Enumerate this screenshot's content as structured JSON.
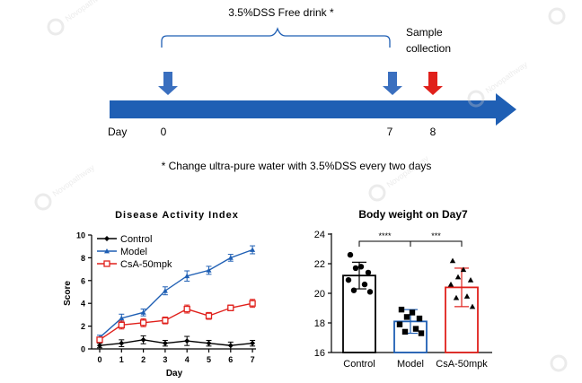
{
  "timeline": {
    "treatment_label": "3.5%DSS   Free drink *",
    "sample_label_line1": "Sample",
    "sample_label_line2": "collection",
    "day_label": "Day",
    "day_marks": [
      "0",
      "7",
      "8"
    ],
    "footnote": "* Change ultra-pure water with 3.5%DSS every two days",
    "colors": {
      "arrow": "#1f5fb4",
      "sample_arrow": "#e0201b",
      "marker_arrow": "#3a6fbf"
    }
  },
  "watermark": {
    "cn": "诺思格新",
    "en": "Novopathway"
  },
  "chart_data": [
    {
      "type": "line",
      "title": "Disease Activity Index",
      "xlabel": "Day",
      "ylabel": "Score",
      "x": [
        0,
        1,
        2,
        3,
        4,
        5,
        6,
        7
      ],
      "xticks": [
        "0",
        "1",
        "2",
        "3",
        "4",
        "5",
        "6",
        "7"
      ],
      "yticks": [
        "0",
        "2",
        "4",
        "6",
        "8",
        "10"
      ],
      "ylim": [
        0,
        10
      ],
      "legend_position": "top-left",
      "series": [
        {
          "name": "Control",
          "color": "#000000",
          "marker": "diamond",
          "values": [
            0.3,
            0.5,
            0.8,
            0.5,
            0.7,
            0.5,
            0.3,
            0.5
          ],
          "errors": [
            0.2,
            0.3,
            0.35,
            0.25,
            0.4,
            0.25,
            0.3,
            0.25
          ]
        },
        {
          "name": "Model",
          "color": "#1f5fb4",
          "marker": "triangle",
          "values": [
            1.0,
            2.7,
            3.2,
            5.1,
            6.4,
            6.9,
            8.0,
            8.7
          ],
          "errors": [
            0.2,
            0.35,
            0.3,
            0.35,
            0.45,
            0.35,
            0.3,
            0.35
          ]
        },
        {
          "name": "CsA-50mpk",
          "color": "#e0201b",
          "marker": "square-open",
          "values": [
            0.8,
            2.1,
            2.3,
            2.5,
            3.5,
            2.9,
            3.6,
            4.0
          ],
          "errors": [
            0.2,
            0.35,
            0.35,
            0.3,
            0.35,
            0.3,
            0.25,
            0.35
          ]
        }
      ]
    },
    {
      "type": "bar",
      "title": "Body weight on Day7",
      "categories": [
        "Control",
        "Model",
        "CsA-50mpk"
      ],
      "values": [
        21.2,
        18.1,
        20.4
      ],
      "errors": [
        0.9,
        0.8,
        1.3
      ],
      "colors": [
        "#000000",
        "#1f5fb4",
        "#e0201b"
      ],
      "markers": [
        "circle",
        "square",
        "triangle"
      ],
      "points": [
        [
          22.6,
          21.8,
          21.7,
          21.4,
          20.9,
          20.6,
          20.2,
          20.1
        ],
        [
          18.9,
          18.7,
          18.4,
          18.3,
          17.9,
          17.6,
          17.4,
          17.3
        ],
        [
          22.2,
          21.6,
          21.1,
          20.9,
          20.6,
          19.8,
          19.7,
          19.1
        ]
      ],
      "yticks": [
        "16",
        "18",
        "20",
        "22",
        "24"
      ],
      "ylim": [
        16,
        24
      ],
      "significance": [
        {
          "from": 0,
          "to": 1,
          "label": "****"
        },
        {
          "from": 1,
          "to": 2,
          "label": "***"
        }
      ]
    }
  ]
}
